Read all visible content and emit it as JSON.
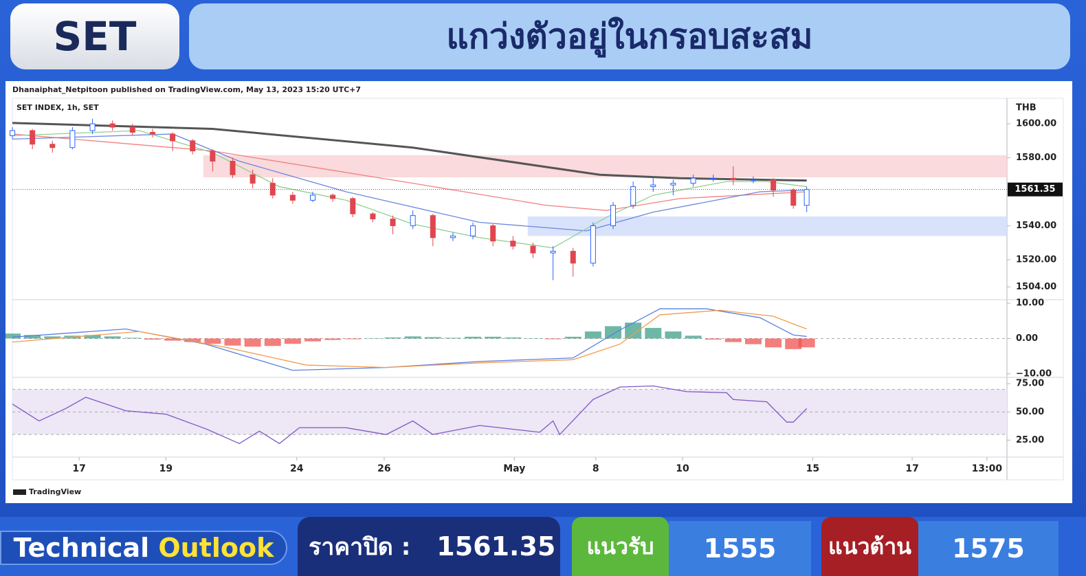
{
  "header": {
    "badge": "SET",
    "title": "แกว่งตัวอยู่ในกรอบสะสม"
  },
  "chart_data": {
    "type": "candlestick",
    "byline": "Dhanaiphat_Netpitoon published on TradingView.com, May 13, 2023 15:20 UTC+7",
    "symbol": "SET INDEX, 1h, SET",
    "currency": "THB",
    "brand": "TradingView",
    "xlim": [
      0,
      149
    ],
    "xticks": [
      {
        "value": 10,
        "label": "17"
      },
      {
        "value": 23,
        "label": "19"
      },
      {
        "value": 42.6,
        "label": "24"
      },
      {
        "value": 55.7,
        "label": "26"
      },
      {
        "value": 75.2,
        "label": "May"
      },
      {
        "value": 87.4,
        "label": "8"
      },
      {
        "value": 100.4,
        "label": "10"
      },
      {
        "value": 119.9,
        "label": "15"
      },
      {
        "value": 134.8,
        "label": "17"
      },
      {
        "value": 146,
        "label": "13:00"
      }
    ],
    "ylim": [
      1496.5,
      1615
    ],
    "yticks": [
      {
        "value": 1600,
        "label": "1600.00"
      },
      {
        "value": 1580,
        "label": "1580.00"
      },
      {
        "value": 1540,
        "label": "1540.00"
      },
      {
        "value": 1520,
        "label": "1520.00"
      },
      {
        "value": 1504,
        "label": "1504.00"
      }
    ],
    "candles": {
      "up_color": "#2962ff",
      "down_color": "#e0464f",
      "x": [
        0,
        3,
        6,
        9,
        12,
        15,
        18,
        21,
        24,
        27,
        30,
        33,
        36,
        39,
        42,
        45,
        48,
        51,
        54,
        57,
        60,
        63,
        66,
        69,
        72,
        75,
        78,
        81,
        84,
        87,
        90,
        93,
        96,
        99,
        102,
        105,
        108,
        111,
        114,
        117,
        119
      ],
      "open": [
        1593,
        1596,
        1588,
        1586,
        1596,
        1600,
        1598,
        1595,
        1594,
        1590,
        1584,
        1578,
        1570,
        1565,
        1558,
        1555,
        1558,
        1556,
        1547,
        1544,
        1540,
        1546,
        1533,
        1534,
        1540,
        1531,
        1528,
        1524,
        1525,
        1518,
        1540,
        1552,
        1563,
        1564,
        1565,
        1568,
        1568,
        1567,
        1567,
        1561,
        1552
      ],
      "high": [
        1598,
        1597,
        1590,
        1598,
        1603,
        1602,
        1600,
        1597,
        1595,
        1591,
        1585,
        1580,
        1573,
        1568,
        1560,
        1560,
        1559,
        1557,
        1548,
        1546,
        1549,
        1547,
        1536,
        1542,
        1541,
        1534,
        1530,
        1528,
        1527,
        1542,
        1554,
        1566,
        1569,
        1567,
        1570,
        1570,
        1575,
        1569,
        1568,
        1562,
        1563
      ],
      "low": [
        1591,
        1585,
        1583,
        1585,
        1594,
        1596,
        1593,
        1592,
        1584,
        1582,
        1572,
        1568,
        1562,
        1556,
        1553,
        1554,
        1554,
        1545,
        1542,
        1535,
        1538,
        1528,
        1531,
        1532,
        1528,
        1526,
        1521,
        1508,
        1510,
        1516,
        1538,
        1550,
        1560,
        1558,
        1563,
        1566,
        1564,
        1565,
        1557,
        1550,
        1548
      ],
      "close": [
        1596,
        1588,
        1586,
        1596,
        1600,
        1598,
        1595,
        1594,
        1590,
        1584,
        1578,
        1570,
        1565,
        1558,
        1555,
        1558,
        1556,
        1547,
        1544,
        1540,
        1546,
        1533,
        1534,
        1540,
        1531,
        1528,
        1524,
        1525,
        1518,
        1540,
        1552,
        1563,
        1564,
        1565,
        1568,
        1568,
        1567,
        1567,
        1561,
        1552,
        1561.35
      ]
    },
    "lines": [
      {
        "color": "#555555",
        "width": 3,
        "x": [
          0,
          30,
          60,
          88,
          100,
          119
        ],
        "values": [
          1600.5,
          1597,
          1586,
          1570,
          1568,
          1566.6
        ]
      },
      {
        "color": "#f08080",
        "width": 1.3,
        "x": [
          0,
          30,
          60,
          80,
          89,
          100,
          119
        ],
        "values": [
          1594,
          1584,
          1565,
          1552,
          1549,
          1556,
          1560
        ]
      },
      {
        "color": "#6a85e0",
        "width": 1.3,
        "x": [
          0,
          24,
          34,
          50,
          70,
          86,
          96,
          112,
          119
        ],
        "values": [
          1591,
          1594,
          1578,
          1560,
          1542,
          1537,
          1548,
          1560,
          1561
        ]
      },
      {
        "color": "#8fcf8f",
        "width": 1.3,
        "x": [
          0,
          19,
          30,
          40,
          50,
          60,
          70,
          81,
          89,
          96,
          107,
          113,
          119
        ],
        "values": [
          1593,
          1596,
          1583,
          1563,
          1555,
          1541,
          1533,
          1527,
          1545,
          1558,
          1566,
          1566,
          1563
        ]
      }
    ],
    "zones": [
      {
        "x0": 28.6,
        "low": 1568.5,
        "high": 1581.5,
        "color": "#f9d6d8"
      },
      {
        "x0": 77.2,
        "low": 1534,
        "high": 1545.5,
        "color": "#d4e0fb"
      }
    ],
    "last_price": 1561.35,
    "panes": [
      {
        "type": "macd",
        "ylim": [
          -10.8,
          10.8
        ],
        "yticks": [
          {
            "value": 10,
            "label": "10.00"
          },
          {
            "value": 0,
            "label": "0.00"
          },
          {
            "value": -10,
            "label": "−10.00"
          }
        ],
        "levels": [
          0
        ],
        "histogram": {
          "pos_color": "#3d9f8a",
          "neg_color": "#ef5350",
          "x": [
            0,
            3,
            6,
            9,
            12,
            15,
            18,
            21,
            24,
            27,
            30,
            33,
            36,
            39,
            42,
            45,
            48,
            51,
            54,
            57,
            60,
            63,
            66,
            69,
            72,
            75,
            78,
            81,
            84,
            87,
            90,
            93,
            96,
            99,
            102,
            105,
            108,
            111,
            114,
            117,
            119
          ],
          "values": [
            1.4,
            1.0,
            0.6,
            0.8,
            1.0,
            0.6,
            0.2,
            -0.3,
            -0.6,
            -1.0,
            -1.5,
            -2.0,
            -2.3,
            -2.1,
            -1.5,
            -0.8,
            -0.4,
            -0.2,
            0.1,
            0.3,
            0.6,
            0.4,
            0.2,
            0.5,
            0.5,
            0.3,
            0.1,
            -0.2,
            0.5,
            2.0,
            3.5,
            4.5,
            3.0,
            2.0,
            0.8,
            -0.3,
            -1.0,
            -1.6,
            -2.5,
            -3.0,
            -2.5
          ]
        },
        "lines": [
          {
            "color": "#5b7fe0",
            "width": 1.3,
            "x": [
              0,
              17,
              29,
              42,
              56,
              70,
              84,
              91,
              97,
              104,
              112,
              117,
              119
            ],
            "values": [
              0.4,
              2.7,
              -1.6,
              -9,
              -8.2,
              -6.5,
              -5.5,
              2.4,
              8.4,
              8.4,
              5.9,
              1,
              0.6
            ]
          },
          {
            "color": "#f39a4a",
            "width": 1.3,
            "x": [
              0,
              19,
              32,
              44,
              56,
              70,
              84,
              91,
              97,
              106,
              114,
              119
            ],
            "values": [
              -1,
              2,
              -2.5,
              -7.5,
              -8.2,
              -6.9,
              -6,
              -1.6,
              6.7,
              8,
              6.3,
              2.7
            ]
          }
        ]
      },
      {
        "type": "rsi",
        "ylim": [
          10,
          80
        ],
        "yticks": [
          {
            "value": 75,
            "label": "75.00"
          },
          {
            "value": 50,
            "label": "50.00"
          },
          {
            "value": 25,
            "label": "25.00"
          }
        ],
        "levels": [
          70,
          50,
          30
        ],
        "band": [
          30,
          70
        ],
        "band_color": "#ede7f6",
        "lines": [
          {
            "color": "#7e57c2",
            "width": 1.3,
            "x": [
              0,
              4,
              8,
              11,
              17,
              23,
              29,
              34,
              37,
              40,
              43,
              50,
              56,
              60,
              63,
              70,
              79,
              81,
              82,
              87,
              91,
              96,
              101,
              107,
              108,
              113,
              116,
              117,
              119
            ],
            "values": [
              57,
              42,
              53,
              63,
              51,
              48,
              35,
              22,
              33,
              22,
              36,
              36,
              30,
              42,
              30,
              38,
              32,
              42,
              30,
              61,
              72,
              73,
              68,
              67,
              61,
              59,
              41,
              41,
              53
            ]
          }
        ]
      }
    ]
  },
  "footer": {
    "technical": "Technical",
    "outlook": "Outlook",
    "close_label": "ราคาปิด :",
    "close": "1561.35",
    "support_label": "แนวรับ",
    "support": "1555",
    "resistance_label": "แนวต้าน",
    "resistance": "1575"
  }
}
